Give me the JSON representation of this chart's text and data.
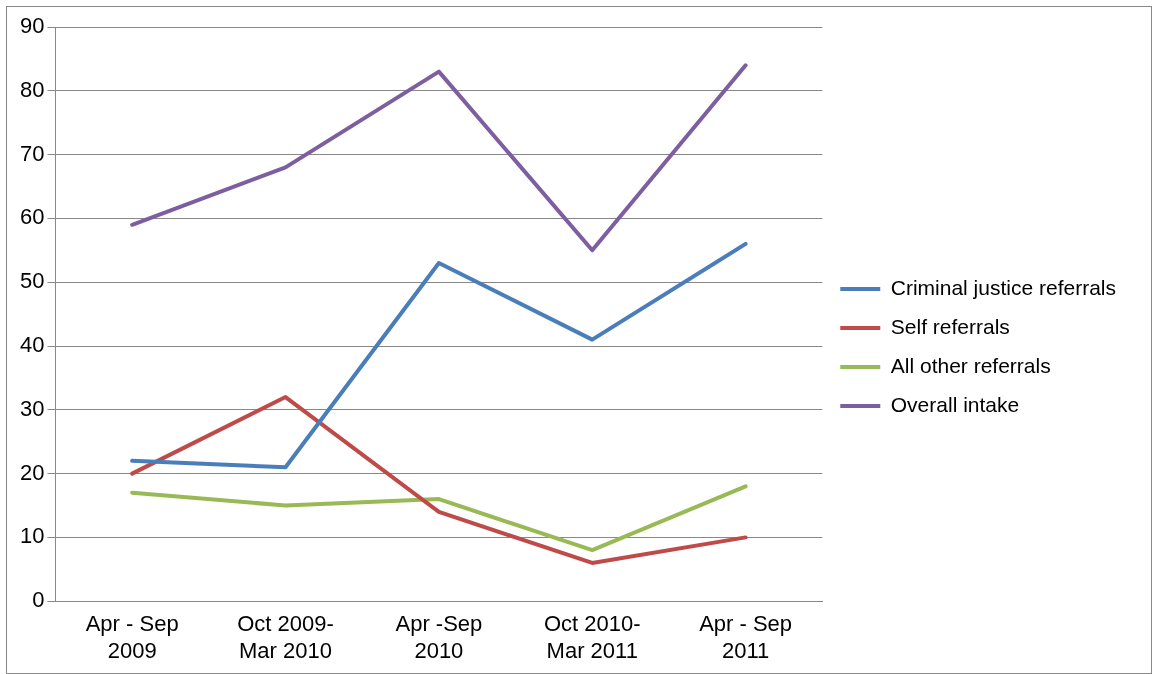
{
  "chart_data": {
    "type": "line",
    "categories": [
      "Apr - Sep 2009",
      "Oct 2009-Mar 2010",
      "Apr -Sep 2010",
      "Oct 2010-Mar 2011",
      "Apr - Sep 2011"
    ],
    "series": [
      {
        "name": "Criminal justice referrals",
        "color": "#4a7ebb",
        "values": [
          22,
          21,
          53,
          41,
          56
        ]
      },
      {
        "name": "Self referrals",
        "color": "#be4b48",
        "values": [
          20,
          32,
          14,
          6,
          10
        ]
      },
      {
        "name": "All other referrals",
        "color": "#98b954",
        "values": [
          17,
          15,
          16,
          8,
          18
        ]
      },
      {
        "name": "Overall intake",
        "color": "#7d5fa0",
        "values": [
          59,
          68,
          83,
          55,
          84
        ]
      }
    ],
    "ylim": [
      0,
      90
    ],
    "yticks": [
      0,
      10,
      20,
      30,
      40,
      50,
      60,
      70,
      80,
      90
    ],
    "grid": "y",
    "legend": "right",
    "marker": "none",
    "line_style": "solid"
  }
}
